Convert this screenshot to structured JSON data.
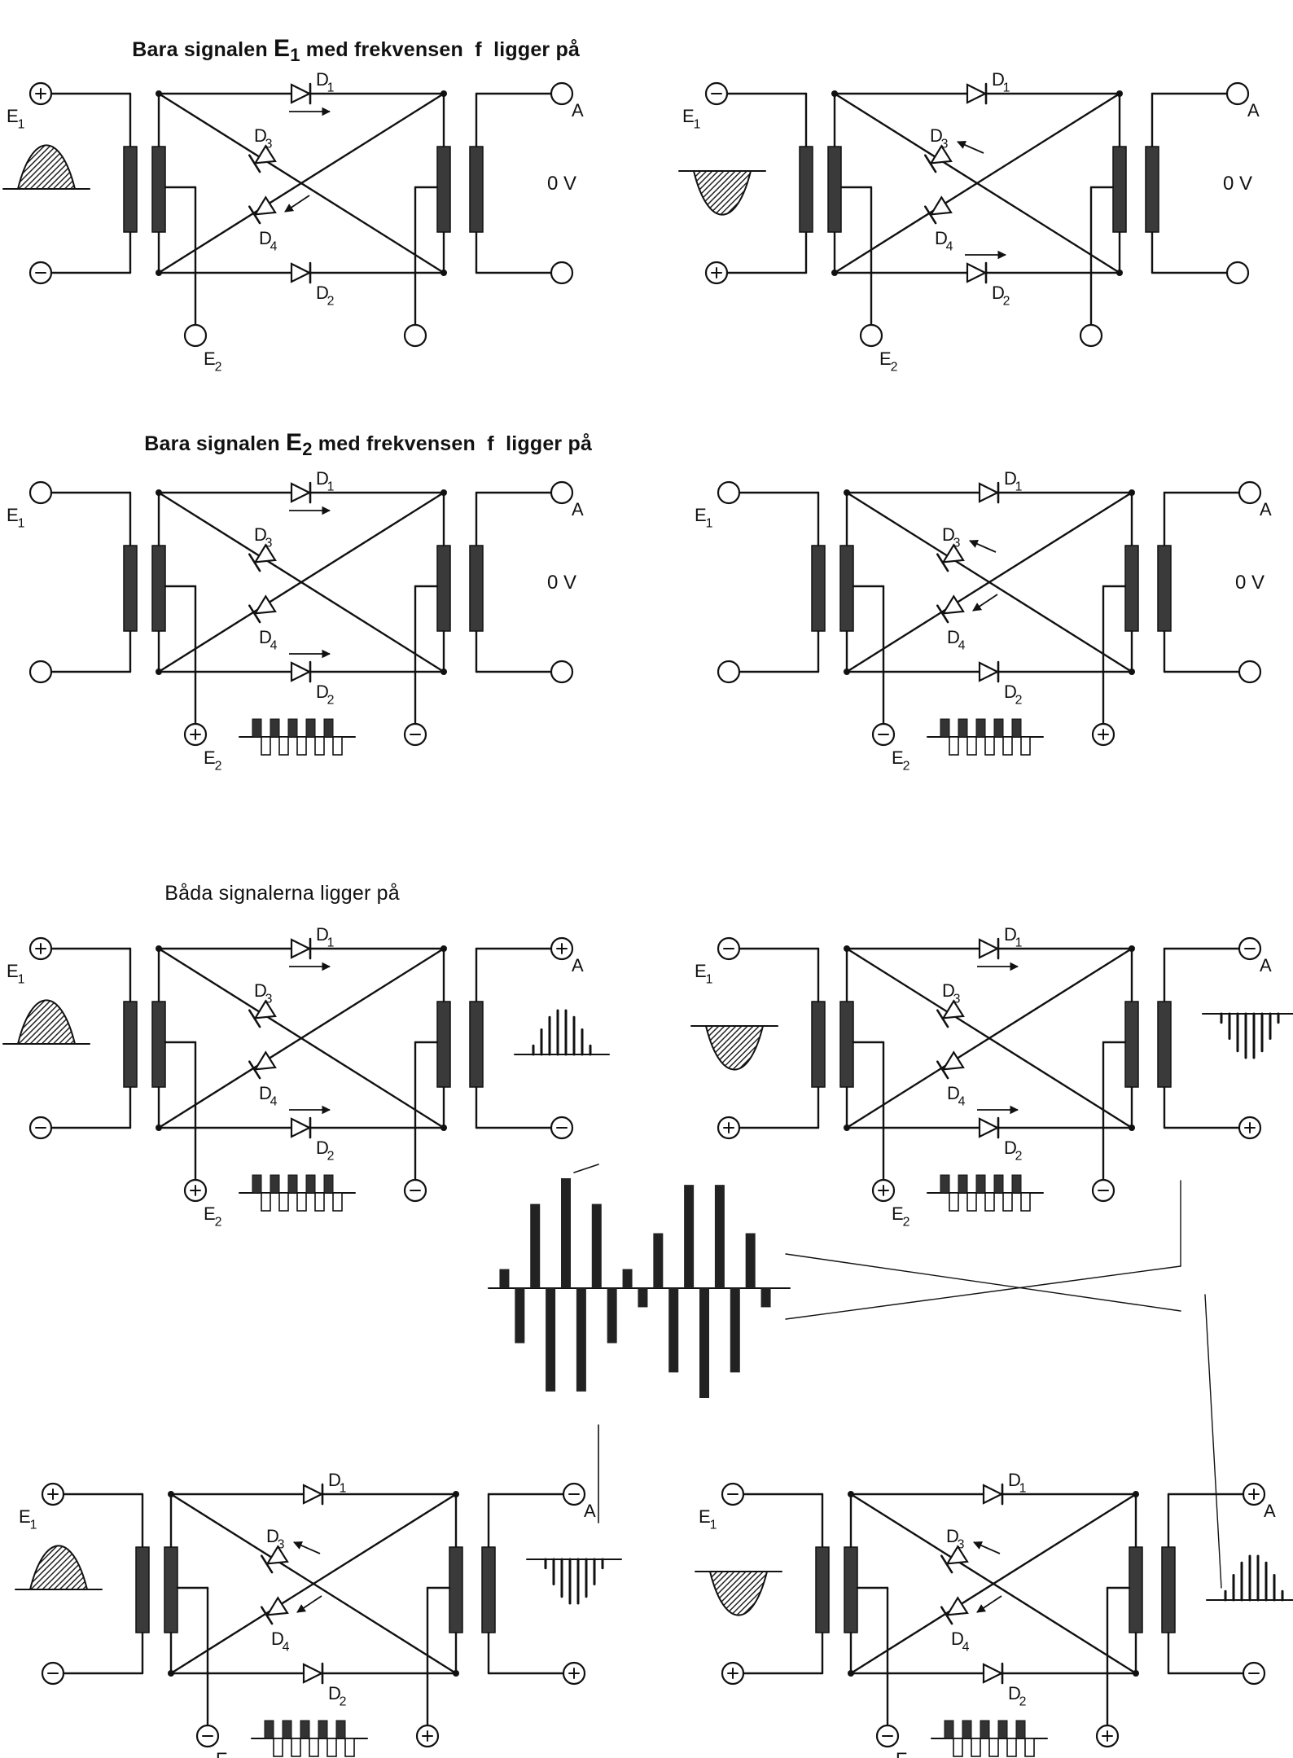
{
  "headings": {
    "e1_only": {
      "prefix": "Bara signalen ",
      "symbol": "E",
      "subscript": "1",
      "suffix": " med frekvensen  f  ligger på"
    },
    "e2_only": {
      "prefix": "Bara signalen ",
      "symbol": "E",
      "subscript": "2",
      "suffix": " med frekvensen  f  ligger på"
    },
    "both": "Båda signalerna ligger på"
  },
  "labels": {
    "e1": "E",
    "e1_sub": "1",
    "e2": "E",
    "e2_sub": "2",
    "output": "A",
    "zero_volt": "0 V",
    "d1": "D",
    "d1_sub": "1",
    "d2": "D",
    "d2_sub": "2",
    "d3": "D",
    "d3_sub": "3",
    "d4": "D",
    "d4_sub": "4",
    "plus": "+",
    "minus": "−"
  },
  "colors": {
    "ink": "#111111",
    "paper": "#ffffff",
    "hatch": "#333333"
  },
  "circuits": [
    {
      "row": "E1 only",
      "column": "left",
      "e1": "+/−",
      "e1_wave": "positive half",
      "e2": "none",
      "e2_wave": "none",
      "output": "0 V",
      "conducting": [
        "D1",
        "D4"
      ]
    },
    {
      "row": "E1 only",
      "column": "right",
      "e1": "−/+",
      "e1_wave": "negative half",
      "e2": "none",
      "e2_wave": "none",
      "output": "0 V",
      "conducting": [
        "D3",
        "D2"
      ]
    },
    {
      "row": "E2 only",
      "column": "left",
      "e1": "none",
      "e1_wave": "none",
      "e2": "+/−",
      "e2_wave": "square",
      "output": "0 V",
      "conducting": [
        "D1",
        "D2"
      ]
    },
    {
      "row": "E2 only",
      "column": "right",
      "e1": "none",
      "e1_wave": "none",
      "e2": "−/+",
      "e2_wave": "square",
      "output": "0 V",
      "conducting": [
        "D3",
        "D4"
      ]
    },
    {
      "row": "both",
      "column": "left",
      "e1": "+/−",
      "e1_wave": "positive half",
      "e2": "+/−",
      "e2_wave": "square",
      "output": "+/−",
      "output_wave": "positive chopped",
      "conducting": [
        "D1",
        "D2"
      ]
    },
    {
      "row": "both",
      "column": "right",
      "e1": "−/+",
      "e1_wave": "negative half",
      "e2": "+/−",
      "e2_wave": "square",
      "output": "−/+",
      "output_wave": "negative chopped",
      "conducting": [
        "D1",
        "D2"
      ]
    },
    {
      "row": "both 2",
      "column": "left",
      "e1": "+/−",
      "e1_wave": "positive half",
      "e2": "−/+",
      "e2_wave": "square",
      "output": "−/+",
      "output_wave": "negative chopped",
      "conducting": [
        "D3",
        "D4"
      ]
    },
    {
      "row": "both 2",
      "column": "right",
      "e1": "−/+",
      "e1_wave": "negative half",
      "e2": "−/+",
      "e2_wave": "square",
      "output": "+/−",
      "output_wave": "positive chopped",
      "conducting": [
        "D3",
        "D4"
      ]
    }
  ],
  "combined_output": {
    "wave": "double sideband suppressed carrier"
  }
}
